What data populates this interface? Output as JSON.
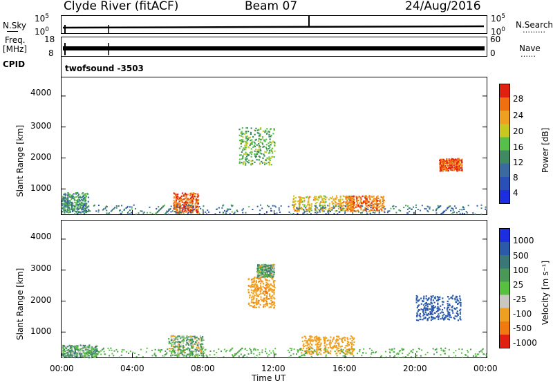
{
  "header": {
    "station": "Clyde River (fitACF)",
    "beam": "Beam 07",
    "date": "24/Aug/2016"
  },
  "nsky_panel": {
    "left_label": "N.Sky",
    "right_label": "N.Search",
    "right_sub": "………",
    "ticks_left": [
      "10^5",
      "10^0"
    ],
    "ticks_right": [
      "10^5",
      "10^0"
    ]
  },
  "freq_panel": {
    "left_label_line1": "Freq.",
    "left_label_line2": "[MHz]",
    "ticks_left": [
      "18",
      "8"
    ],
    "ticks_right": [
      "60",
      "0"
    ],
    "right_label": "Nave",
    "right_sub": "……"
  },
  "cpid": {
    "label": "CPID",
    "program": "twofsound  -3503"
  },
  "power_panel": {
    "ylabel": "Slant Range [km]",
    "yticks": [
      "4000",
      "3000",
      "2000",
      "1000"
    ],
    "colorbar_label": "Power [dB]",
    "colorbar_ticks": [
      "28",
      "24",
      "20",
      "16",
      "12",
      "8",
      "4"
    ]
  },
  "velocity_panel": {
    "ylabel": "Slant Range [km]",
    "yticks": [
      "4000",
      "3000",
      "2000",
      "1000"
    ],
    "colorbar_label": "Velocity  [m s⁻¹]",
    "colorbar_ticks": [
      "1000",
      "500",
      "100",
      "25",
      "-25",
      "-100",
      "-500",
      "-1000"
    ]
  },
  "xaxis": {
    "ticks": [
      "00:00",
      "04:00",
      "08:00",
      "12:00",
      "16:00",
      "20:00",
      "00:00"
    ],
    "label": "Time UT"
  },
  "colors": {
    "power_scale": [
      "#1c2ee0",
      "#2a50b8",
      "#3a6aa0",
      "#3f8a60",
      "#57c04a",
      "#c8c820",
      "#f0a020",
      "#f07010",
      "#e02010"
    ],
    "velocity_scale": [
      "#1c2ee0",
      "#2a5aa8",
      "#3a7878",
      "#4a9858",
      "#58c040",
      "#c8c8c0",
      "#f0a020",
      "#f07a10",
      "#e02010"
    ]
  },
  "chart_data": [
    {
      "type": "heatmap",
      "title": "Power",
      "xlabel": "Time UT",
      "ylabel": "Slant Range [km]",
      "xlim": [
        "00:00",
        "24:00"
      ],
      "ylim": [
        180,
        4600
      ],
      "colorbar": {
        "label": "Power [dB]",
        "range": [
          0,
          30
        ]
      },
      "regions": [
        {
          "t_start": 6.3,
          "t_end": 7.7,
          "r_start": 250,
          "r_end": 900,
          "value": 26
        },
        {
          "t_start": 13.0,
          "t_end": 16.5,
          "r_start": 300,
          "r_end": 800,
          "value": 20
        },
        {
          "t_start": 16.0,
          "t_end": 18.2,
          "r_start": 300,
          "r_end": 800,
          "value": 24
        },
        {
          "t_start": 21.3,
          "t_end": 22.6,
          "r_start": 1600,
          "r_end": 2000,
          "value": 26
        },
        {
          "t_start": 10.0,
          "t_end": 12.0,
          "r_start": 1800,
          "r_end": 3000,
          "value": 14
        },
        {
          "t_start": 0.0,
          "t_end": 1.5,
          "r_start": 250,
          "r_end": 900,
          "value": 12
        }
      ]
    },
    {
      "type": "heatmap",
      "title": "Velocity",
      "xlabel": "Time UT",
      "ylabel": "Slant Range [km]",
      "xlim": [
        "00:00",
        "24:00"
      ],
      "ylim": [
        180,
        4600
      ],
      "colorbar": {
        "label": "Velocity [m s-1]",
        "range": [
          -1000,
          1000
        ]
      },
      "regions": [
        {
          "t_start": 6.0,
          "t_end": 8.0,
          "r_start": 250,
          "r_end": 900,
          "value": 0
        },
        {
          "t_start": 13.5,
          "t_end": 16.5,
          "r_start": 300,
          "r_end": 900,
          "value": -300
        },
        {
          "t_start": 10.5,
          "t_end": 12.0,
          "r_start": 1800,
          "r_end": 2800,
          "value": -400
        },
        {
          "t_start": 20.0,
          "t_end": 22.5,
          "r_start": 1400,
          "r_end": 2200,
          "value": 700
        },
        {
          "t_start": 0.0,
          "t_end": 2.0,
          "r_start": 200,
          "r_end": 600,
          "value": 60
        },
        {
          "t_start": 11.0,
          "t_end": 12.0,
          "r_start": 2800,
          "r_end": 3200,
          "value": 10
        }
      ]
    }
  ]
}
